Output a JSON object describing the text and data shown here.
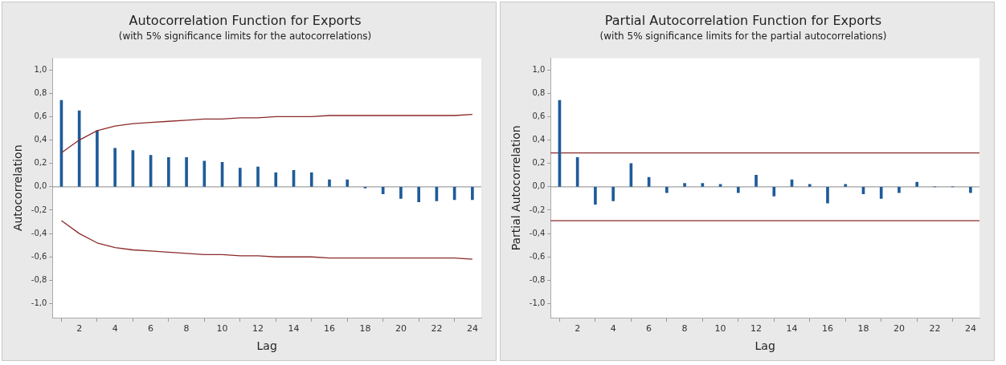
{
  "chart_data": [
    {
      "type": "bar",
      "title": "Autocorrelation Function for Exports",
      "subtitle": "(with 5% significance limits for the autocorrelations)",
      "xlabel": "Lag",
      "ylabel": "Autocorrelation",
      "xlim": [
        0.5,
        24.5
      ],
      "xticks": [
        2,
        4,
        6,
        8,
        10,
        12,
        14,
        16,
        18,
        20,
        22,
        24
      ],
      "ylim": [
        -1.12,
        1.1
      ],
      "yticks": [
        {
          "value": -1,
          "label": "-1,0"
        },
        {
          "value": -0.8,
          "label": "-0,8"
        },
        {
          "value": -0.6,
          "label": "-0,6"
        },
        {
          "value": -0.4,
          "label": "-0,4"
        },
        {
          "value": -0.2,
          "label": "-0,2"
        },
        {
          "value": 0,
          "label": "0,0"
        },
        {
          "value": 0.2,
          "label": "0,2"
        },
        {
          "value": 0.4,
          "label": "0,4"
        },
        {
          "value": 0.6,
          "label": "0,6"
        },
        {
          "value": 0.8,
          "label": "0,8"
        },
        {
          "value": 1,
          "label": "1,0"
        }
      ],
      "grid": false,
      "legend": false,
      "ref_lines": [
        {
          "axis": "y",
          "value": 0,
          "color": "#a0a0a0"
        }
      ],
      "series": [
        {
          "color": "#1f5b99",
          "x": [
            1,
            2,
            3,
            4,
            5,
            6,
            7,
            8,
            9,
            10,
            11,
            12,
            13,
            14,
            15,
            16,
            17,
            18,
            19,
            20,
            21,
            22,
            23,
            24
          ],
          "values": [
            0.74,
            0.65,
            0.48,
            0.33,
            0.31,
            0.27,
            0.25,
            0.25,
            0.22,
            0.21,
            0.16,
            0.17,
            0.12,
            0.14,
            0.12,
            0.06,
            0.06,
            -0.01,
            -0.06,
            -0.1,
            -0.13,
            -0.12,
            -0.11,
            -0.11
          ]
        },
        {
          "type": "line",
          "color": "#8b2a2a",
          "x": [
            1,
            2,
            3,
            4,
            5,
            6,
            7,
            8,
            9,
            10,
            11,
            12,
            13,
            14,
            15,
            16,
            17,
            18,
            19,
            20,
            21,
            22,
            23,
            24
          ],
          "values": [
            0.29,
            0.4,
            0.48,
            0.52,
            0.54,
            0.55,
            0.56,
            0.57,
            0.58,
            0.58,
            0.59,
            0.59,
            0.6,
            0.6,
            0.6,
            0.61,
            0.61,
            0.61,
            0.61,
            0.61,
            0.61,
            0.61,
            0.61,
            0.62
          ]
        },
        {
          "type": "line",
          "color": "#8b2a2a",
          "x": [
            1,
            2,
            3,
            4,
            5,
            6,
            7,
            8,
            9,
            10,
            11,
            12,
            13,
            14,
            15,
            16,
            17,
            18,
            19,
            20,
            21,
            22,
            23,
            24
          ],
          "values": [
            -0.29,
            -0.4,
            -0.48,
            -0.52,
            -0.54,
            -0.55,
            -0.56,
            -0.57,
            -0.58,
            -0.58,
            -0.59,
            -0.59,
            -0.6,
            -0.6,
            -0.6,
            -0.61,
            -0.61,
            -0.61,
            -0.61,
            -0.61,
            -0.61,
            -0.61,
            -0.61,
            -0.62
          ]
        }
      ]
    },
    {
      "type": "bar",
      "title": "Partial Autocorrelation Function for Exports",
      "subtitle": "(with 5% significance limits for the partial autocorrelations)",
      "xlabel": "Lag",
      "ylabel": "Partial Autocorrelation",
      "xlim": [
        0.5,
        24.5
      ],
      "xticks": [
        2,
        4,
        6,
        8,
        10,
        12,
        14,
        16,
        18,
        20,
        22,
        24
      ],
      "ylim": [
        -1.12,
        1.1
      ],
      "yticks": [
        {
          "value": -1,
          "label": "-1,0"
        },
        {
          "value": -0.8,
          "label": "-0,8"
        },
        {
          "value": -0.6,
          "label": "-0,6"
        },
        {
          "value": -0.4,
          "label": "-0,4"
        },
        {
          "value": -0.2,
          "label": "-0,2"
        },
        {
          "value": 0,
          "label": "0,0"
        },
        {
          "value": 0.2,
          "label": "0,2"
        },
        {
          "value": 0.4,
          "label": "0,4"
        },
        {
          "value": 0.6,
          "label": "0,6"
        },
        {
          "value": 0.8,
          "label": "0,8"
        },
        {
          "value": 1,
          "label": "1,0"
        }
      ],
      "grid": false,
      "legend": false,
      "ref_lines": [
        {
          "axis": "y",
          "value": 0,
          "color": "#a0a0a0"
        },
        {
          "axis": "y",
          "value": 0.29,
          "color": "#8b2a2a"
        },
        {
          "axis": "y",
          "value": -0.29,
          "color": "#8b2a2a"
        }
      ],
      "series": [
        {
          "color": "#1f5b99",
          "x": [
            1,
            2,
            3,
            4,
            5,
            6,
            7,
            8,
            9,
            10,
            11,
            12,
            13,
            14,
            15,
            16,
            17,
            18,
            19,
            20,
            21,
            22,
            23,
            24
          ],
          "values": [
            0.74,
            0.25,
            -0.15,
            -0.12,
            0.2,
            0.08,
            -0.05,
            0.03,
            0.03,
            0.02,
            -0.05,
            0.1,
            -0.08,
            0.06,
            0.02,
            -0.14,
            0.02,
            -0.06,
            -0.1,
            -0.05,
            0.04,
            0,
            0,
            -0.05
          ]
        }
      ]
    }
  ]
}
